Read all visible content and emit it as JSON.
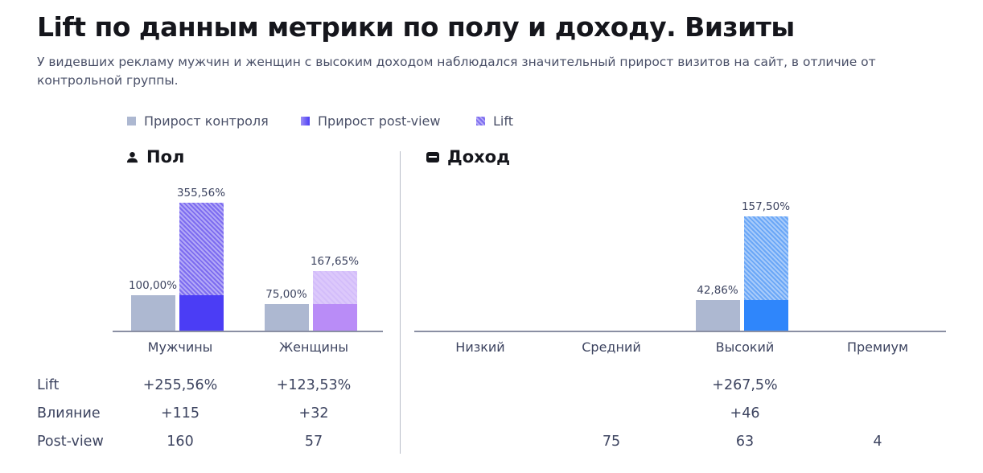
{
  "title": "Lift по данным метрики по полу и доходу. Визиты",
  "subtitle": "У видевших рекламу мужчин и женщин с высоким доходом наблюдался значительный прирост визитов на сайт, в отличие от контрольной группы.",
  "legend": [
    {
      "label": "Прирост контроля",
      "color": "#adb8d1"
    },
    {
      "label": "Прирост post-view",
      "color": "#4b3df5"
    },
    {
      "label": "Lift",
      "color": "#9d8ff5"
    }
  ],
  "sections": {
    "gender": {
      "title": "Пол",
      "icon": "person-icon"
    },
    "income": {
      "title": "Доход",
      "icon": "wallet-icon"
    }
  },
  "row_labels": [
    "Lift",
    "Влияние",
    "Post-view"
  ],
  "chart_data": [
    {
      "type": "bar",
      "title": "Пол",
      "categories": [
        "Мужчины",
        "Женщины"
      ],
      "series": [
        {
          "name": "Прирост контроля",
          "values": [
            100.0,
            75.0
          ],
          "labels": [
            "100,00%",
            "75,00%"
          ]
        },
        {
          "name": "Прирост post-view",
          "values": [
            355.56,
            167.65
          ],
          "labels": [
            "355,56%",
            "167,65%"
          ]
        }
      ],
      "colors": {
        "control": "#adb8d1",
        "postview": [
          "#4b3df5",
          "#b98cf7"
        ]
      },
      "table": {
        "lift": [
          "+255,56%",
          "+123,53%"
        ],
        "impact": [
          "+115",
          "+32"
        ],
        "postview": [
          "160",
          "57"
        ]
      }
    },
    {
      "type": "bar",
      "title": "Доход",
      "categories": [
        "Низкий",
        "Средний",
        "Высокий",
        "Премиум"
      ],
      "series": [
        {
          "name": "Прирост контроля",
          "values": [
            null,
            null,
            42.86,
            null
          ],
          "labels": [
            "",
            "",
            "42,86%",
            ""
          ]
        },
        {
          "name": "Прирост post-view",
          "values": [
            null,
            null,
            157.5,
            null
          ],
          "labels": [
            "",
            "",
            "157,50%",
            ""
          ]
        }
      ],
      "colors": {
        "control": "#adb8d1",
        "postview": "#2f86fb"
      },
      "table": {
        "lift": [
          "",
          "",
          "+267,5%",
          ""
        ],
        "impact": [
          "",
          "",
          "+46",
          ""
        ],
        "postview": [
          "",
          "75",
          "63",
          "4"
        ]
      }
    }
  ]
}
